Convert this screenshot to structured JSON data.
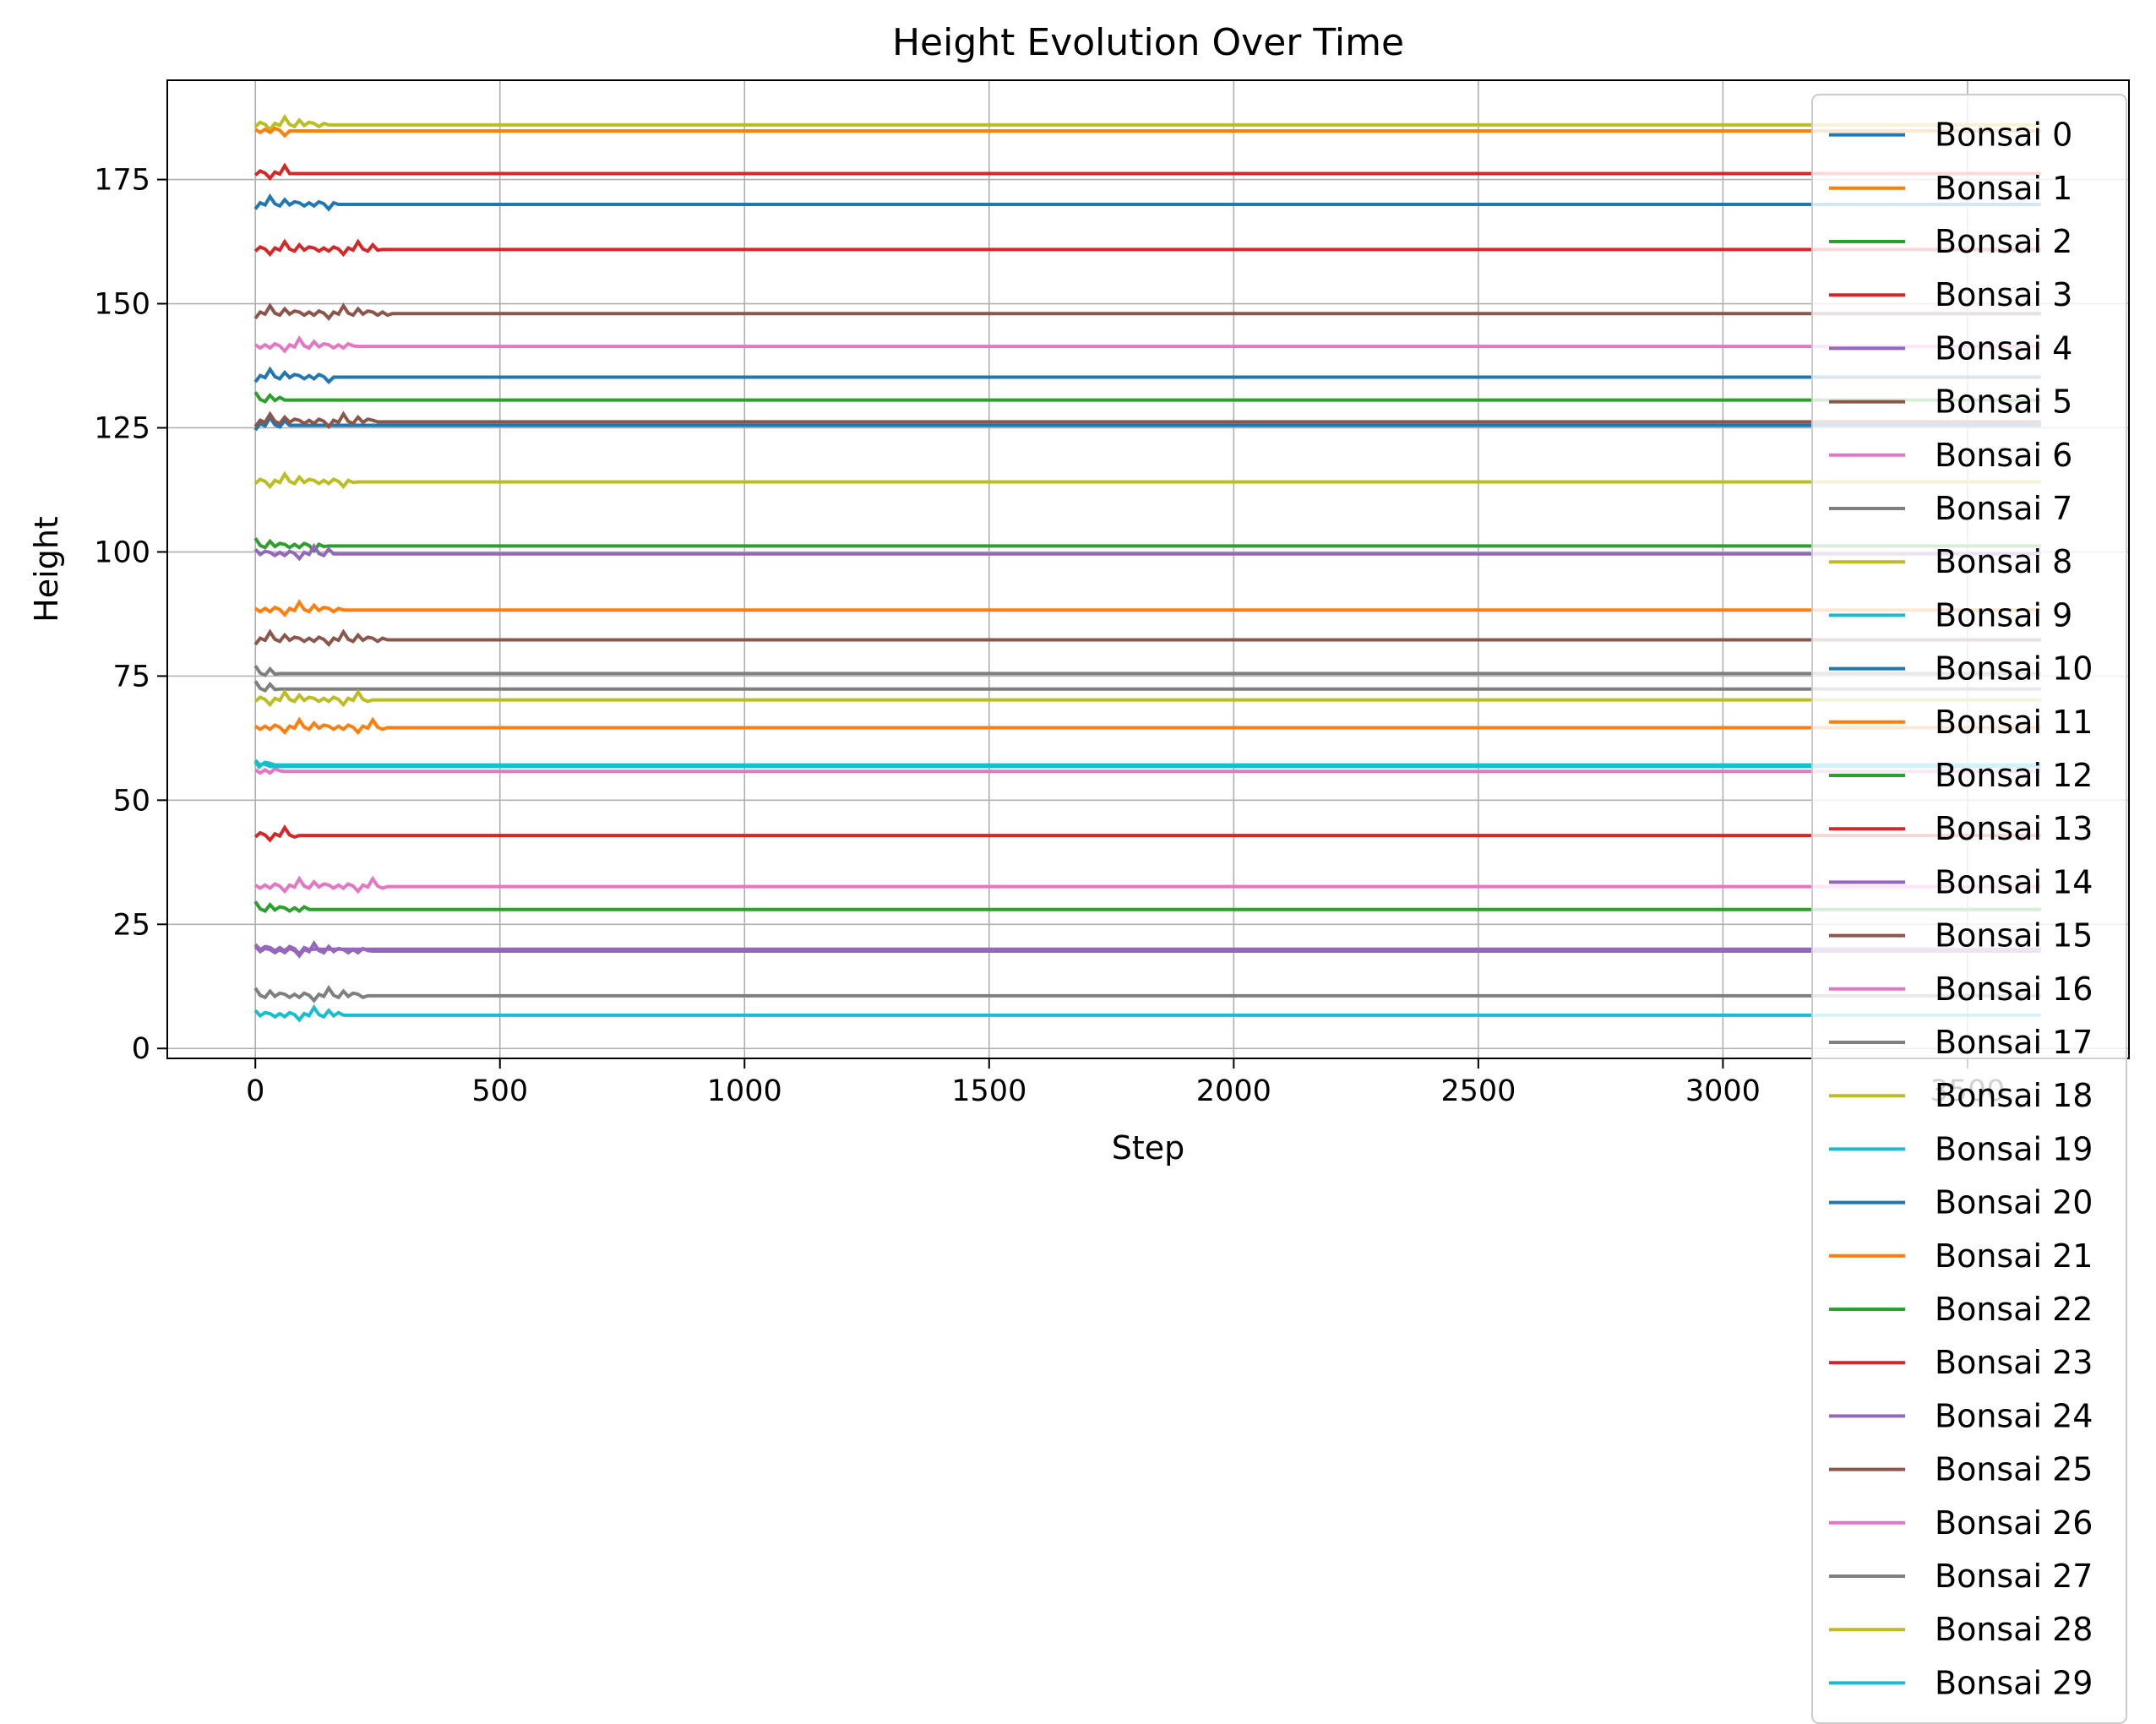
{
  "chart_data": {
    "type": "line",
    "title": "Height Evolution Over Time",
    "xlabel": "Step",
    "ylabel": "Height",
    "xlim": [
      -180,
      3830
    ],
    "ylim": [
      -2,
      195
    ],
    "x_ticks": [
      0,
      500,
      1000,
      1500,
      2000,
      2500,
      3000,
      3500
    ],
    "y_ticks": [
      0,
      25,
      50,
      75,
      100,
      125,
      150,
      175
    ],
    "x_end": 3650,
    "grid": true,
    "legend_placement": "right",
    "colors": [
      "#1f77b4",
      "#ff7f0e",
      "#2ca02c",
      "#d62728",
      "#9467bd",
      "#8c564b",
      "#e377c2",
      "#7f7f7f",
      "#bcbd22",
      "#17becf"
    ],
    "series": [
      {
        "name": "Bonsai 0",
        "value": 135.2,
        "settle": 160
      },
      {
        "name": "Bonsai 1",
        "value": 88.3,
        "settle": 180
      },
      {
        "name": "Bonsai 2",
        "value": 101.2,
        "settle": 150
      },
      {
        "name": "Bonsai 3",
        "value": 160.9,
        "settle": 260
      },
      {
        "name": "Bonsai 4",
        "value": 99.6,
        "settle": 160
      },
      {
        "name": "Bonsai 5",
        "value": 82.3,
        "settle": 270
      },
      {
        "name": "Bonsai 6",
        "value": 32.6,
        "settle": 270
      },
      {
        "name": "Bonsai 7",
        "value": 72.4,
        "settle": 50
      },
      {
        "name": "Bonsai 8",
        "value": 186.0,
        "settle": 150
      },
      {
        "name": "Bonsai 9",
        "value": 57.1,
        "settle": 40
      },
      {
        "name": "Bonsai 10",
        "value": 170.0,
        "settle": 170
      },
      {
        "name": "Bonsai 11",
        "value": 64.6,
        "settle": 270
      },
      {
        "name": "Bonsai 12",
        "value": 130.6,
        "settle": 60
      },
      {
        "name": "Bonsai 13",
        "value": 176.2,
        "settle": 70
      },
      {
        "name": "Bonsai 14",
        "value": 19.6,
        "settle": 240
      },
      {
        "name": "Bonsai 15",
        "value": 148.0,
        "settle": 280
      },
      {
        "name": "Bonsai 16",
        "value": 141.4,
        "settle": 210
      },
      {
        "name": "Bonsai 17",
        "value": 10.6,
        "settle": 230
      },
      {
        "name": "Bonsai 18",
        "value": 114.1,
        "settle": 210
      },
      {
        "name": "Bonsai 19",
        "value": 6.7,
        "settle": 180
      },
      {
        "name": "Bonsai 20",
        "value": 125.5,
        "settle": 70
      },
      {
        "name": "Bonsai 21",
        "value": 184.8,
        "settle": 70
      },
      {
        "name": "Bonsai 22",
        "value": 28.0,
        "settle": 110
      },
      {
        "name": "Bonsai 23",
        "value": 42.9,
        "settle": 90
      },
      {
        "name": "Bonsai 24",
        "value": 20.0,
        "settle": 120
      },
      {
        "name": "Bonsai 25",
        "value": 126.2,
        "settle": 250
      },
      {
        "name": "Bonsai 26",
        "value": 55.8,
        "settle": 60
      },
      {
        "name": "Bonsai 27",
        "value": 75.5,
        "settle": 50
      },
      {
        "name": "Bonsai 28",
        "value": 70.2,
        "settle": 240
      },
      {
        "name": "Bonsai 29",
        "value": 56.8,
        "settle": 30
      }
    ]
  }
}
